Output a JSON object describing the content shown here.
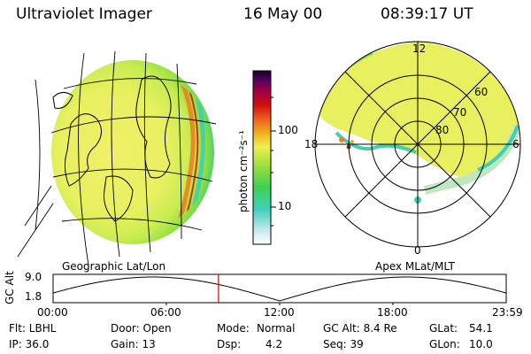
{
  "header": {
    "instrument": "Ultraviolet Imager",
    "date": "16 May 00",
    "time": "08:39:17 UT"
  },
  "colorbar": {
    "unit_label": "photon cm⁻²s⁻¹",
    "ticks": [
      "100",
      "10"
    ]
  },
  "polar": {
    "mlt_labels": {
      "top": "12",
      "left": "18",
      "right": "6",
      "bottom": "0"
    },
    "lat_labels": [
      "60",
      "70",
      "80"
    ]
  },
  "globe_caption": "Geographic Lat/Lon",
  "polar_caption": "Apex MLat/MLT",
  "orbit": {
    "axis_label": "GC Alt",
    "y_ticks": [
      "9.0",
      "1.8"
    ],
    "x_ticks": [
      "00:00",
      "06:00",
      "12:00",
      "18:00",
      "23:59"
    ],
    "current_time_fraction": 0.365
  },
  "status": {
    "row1": {
      "filter": "Flt: LBHL",
      "door": "Door: Open",
      "mode_label": "Mode:",
      "mode_value": "Normal",
      "gc_alt": "GC Alt: 8.4 Re",
      "glat_label": "GLat:",
      "glat_value": "54.1"
    },
    "row2": {
      "ip": "IP: 36.0",
      "gain": "Gain: 13",
      "dsp_label": "Dsp:",
      "dsp_value": "4.2",
      "seq": "Seq: 39",
      "glon_label": "GLon:",
      "glon_value": "10.0"
    }
  },
  "colors": {
    "aurora_yellow": "#e8f060",
    "aurora_green": "#90e040",
    "aurora_cyan": "#40d0b0",
    "aurora_orange": "#f08020",
    "aurora_red": "#d02010",
    "marker_red": "#e00000"
  }
}
